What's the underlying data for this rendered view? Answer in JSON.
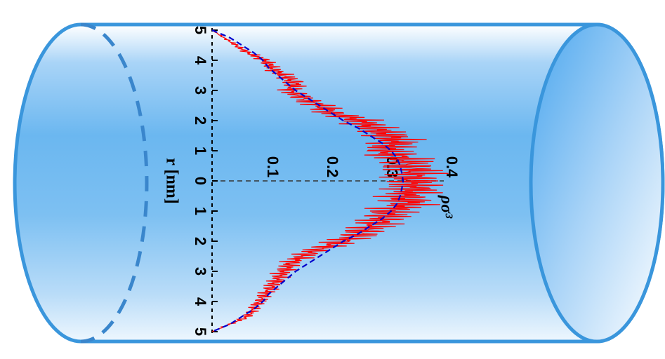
{
  "chart_data": {
    "type": "line",
    "xlabel": "r [nm]",
    "ylabel": "ρσ³",
    "r_ticks": [
      "5",
      "4",
      "3",
      "2",
      "1",
      "0",
      "1",
      "2",
      "3",
      "4",
      "5"
    ],
    "rho_ticks": [
      "0.1",
      "0.2",
      "0.3",
      "0.4"
    ],
    "rlim": [
      -5,
      5
    ],
    "rholim": [
      0,
      0.4
    ],
    "grid": false,
    "colors": {
      "noisy": "#ff0000",
      "smooth": "#0000cc",
      "cylinder": "#3a96dc"
    },
    "series": [
      {
        "style": "noisy",
        "x": [
          -5,
          -4.75,
          -4.5,
          -4.25,
          -4,
          -3.75,
          -3.5,
          -3.25,
          -3,
          -2.75,
          -2.5,
          -2.25,
          -2,
          -1.75,
          -1.5,
          -1.25,
          -1,
          -0.75,
          -0.5,
          -0.25,
          0,
          0.25,
          0.5,
          0.75,
          1,
          1.25,
          1.5,
          1.75,
          2,
          2.25,
          2.5,
          2.75,
          3,
          3.25,
          3.5,
          3.75,
          4,
          4.25,
          4.5,
          4.75,
          5
        ],
        "y": [
          0.0,
          0.02,
          0.04,
          0.06,
          0.09,
          0.1,
          0.12,
          0.14,
          0.13,
          0.15,
          0.18,
          0.2,
          0.25,
          0.27,
          0.3,
          0.31,
          0.29,
          0.32,
          0.33,
          0.34,
          0.33,
          0.34,
          0.32,
          0.33,
          0.3,
          0.29,
          0.27,
          0.25,
          0.22,
          0.18,
          0.15,
          0.13,
          0.12,
          0.11,
          0.1,
          0.09,
          0.08,
          0.07,
          0.06,
          0.03,
          0.0
        ]
      },
      {
        "style": "smooth",
        "x": [
          -5,
          -4.75,
          -4.5,
          -4.25,
          -4,
          -3.75,
          -3.5,
          -3.25,
          -3,
          -2.75,
          -2.5,
          -2.25,
          -2,
          -1.75,
          -1.5,
          -1.25,
          -1,
          -0.75,
          -0.5,
          -0.25,
          0,
          0.25,
          0.5,
          0.75,
          1,
          1.25,
          1.5,
          1.75,
          2,
          2.25,
          2.5,
          2.75,
          3,
          3.25,
          3.5,
          3.75,
          4,
          4.25,
          4.5,
          4.75,
          5
        ],
        "y": [
          0.0,
          0.03,
          0.05,
          0.07,
          0.085,
          0.095,
          0.11,
          0.125,
          0.14,
          0.16,
          0.18,
          0.2,
          0.22,
          0.245,
          0.265,
          0.285,
          0.3,
          0.31,
          0.315,
          0.318,
          0.32,
          0.318,
          0.315,
          0.31,
          0.3,
          0.285,
          0.265,
          0.245,
          0.22,
          0.2,
          0.18,
          0.16,
          0.14,
          0.125,
          0.11,
          0.095,
          0.085,
          0.07,
          0.05,
          0.03,
          0.0
        ]
      }
    ]
  }
}
